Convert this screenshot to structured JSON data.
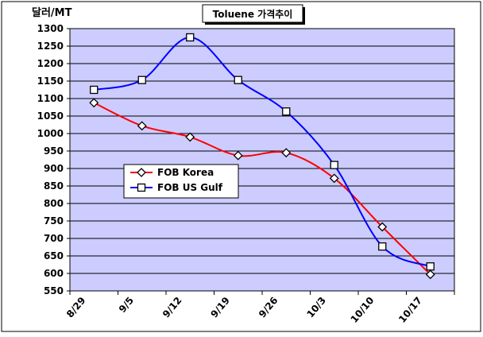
{
  "chart_data": {
    "type": "line",
    "title": "Toluene 가격추이",
    "ylabel": "달러/MT",
    "xlabel": "",
    "categories": [
      "8/29",
      "9/5",
      "9/12",
      "9/19",
      "9/26",
      "10/3",
      "10/10",
      "10/17"
    ],
    "ylim": [
      550,
      1300
    ],
    "yticks": [
      550,
      600,
      650,
      700,
      750,
      800,
      850,
      900,
      950,
      1000,
      1050,
      1100,
      1150,
      1200,
      1250,
      1300
    ],
    "grid": true,
    "legend_position": "middle-left",
    "series": [
      {
        "name": "FOB Korea",
        "color": "#ff0000",
        "marker": "diamond",
        "values": [
          1088,
          1022,
          990,
          937,
          945,
          872,
          733,
          597
        ]
      },
      {
        "name": "FOB US Gulf",
        "color": "#0000ff",
        "marker": "square",
        "values": [
          1125,
          1153,
          1275,
          1153,
          1063,
          910,
          677,
          620
        ]
      }
    ]
  },
  "colors": {
    "plot_background": "#ccccff",
    "gridline": "#000000",
    "page_background": "#ffffff"
  }
}
